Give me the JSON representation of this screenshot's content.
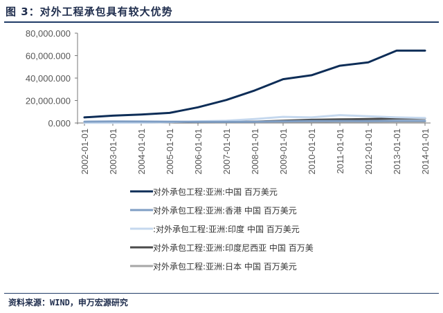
{
  "header": {
    "title": "图 3：对外工程承包具有较大优势"
  },
  "footer": {
    "source": "资料来源：WIND，申万宏源研究"
  },
  "chart_data": {
    "type": "line",
    "x": [
      "2002-01-01",
      "2003-01-01",
      "2004-01-01",
      "2005-01-01",
      "2006-01-01",
      "2007-01-01",
      "2008-01-01",
      "2009-01-01",
      "2010-01-01",
      "2011-01-01",
      "2012-01-01",
      "2013-01-01",
      "2014-01-01"
    ],
    "ylim": [
      0,
      80000
    ],
    "yticks": [
      0,
      20000,
      40000,
      60000,
      80000
    ],
    "ytick_labels": [
      "0.000",
      "20,000.000",
      "40,000.000",
      "60,000.000",
      "80,000.000"
    ],
    "grid": false,
    "legend_position": "bottom",
    "series": [
      {
        "name": "对外承包工程:亚洲:中国 百万美元",
        "color": "#0d2d57",
        "width": 3,
        "values": [
          5000,
          6500,
          7500,
          9000,
          14000,
          20500,
          29000,
          39000,
          42500,
          51000,
          54000,
          64500,
          64500
        ]
      },
      {
        "name": "对外承包工程:亚洲:香港 中国 百万美元",
        "color": "#7f9ec4",
        "width": 3,
        "values": [
          1200,
          1400,
          1300,
          1200,
          1000,
          1000,
          1100,
          1500,
          1800,
          1800,
          1700,
          1900,
          1900
        ]
      },
      {
        "name": "对外承包工程:亚洲:印度 中国 百万美元",
        "color": "#c5d8ee",
        "width": 3,
        "values": [
          100,
          200,
          300,
          800,
          1500,
          2000,
          3500,
          5500,
          5000,
          7000,
          6000,
          5000,
          4500
        ]
      },
      {
        "name": "对外承包工程:亚洲:印度尼西亚 中国 百万美元",
        "color": "#4a4a4a",
        "width": 3,
        "values": [
          300,
          400,
          500,
          600,
          700,
          900,
          1200,
          2000,
          2800,
          3200,
          3500,
          4000,
          4200
        ]
      },
      {
        "name": "对外承包工程:亚洲:日本 中国 百万美元",
        "color": "#a6a6a6",
        "width": 3,
        "values": [
          400,
          500,
          600,
          700,
          800,
          900,
          1000,
          1100,
          1200,
          1300,
          1300,
          1400,
          1400
        ]
      }
    ]
  },
  "legend_labels": {
    "s0": "对外承包工程:亚洲:中国 百万美元",
    "s1": "对外承包工程:亚洲:香港 中国 百万美元",
    "s2": ":对外承包工程:亚洲:印度 中国 百万美元",
    "s3": "对外承包工程:亚洲:印度尼西亚 中国 百万美",
    "s4": "对外承包工程:亚洲:日本 中国 百万美元"
  }
}
